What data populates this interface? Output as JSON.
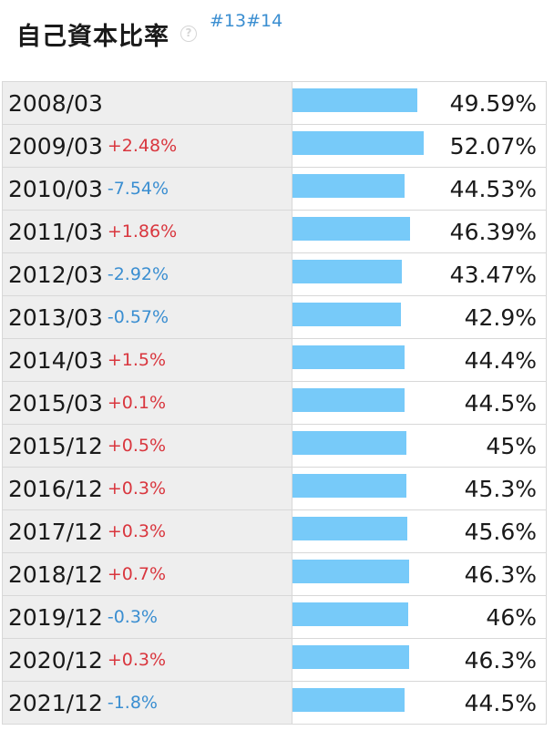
{
  "header": {
    "title": "自己資本比率",
    "help_icon": "question-circle-icon",
    "links": [
      "#13",
      "#14"
    ]
  },
  "colors": {
    "bar": "#77caf9",
    "increase": "#d9363e",
    "decrease": "#3a8ed1",
    "label_bg": "#eeeeee"
  },
  "chart_data": {
    "type": "bar",
    "orientation": "horizontal",
    "title": "自己資本比率",
    "unit": "%",
    "xlim": [
      0,
      100
    ],
    "categories": [
      "2008/03",
      "2009/03",
      "2010/03",
      "2011/03",
      "2012/03",
      "2013/03",
      "2014/03",
      "2015/03",
      "2015/12",
      "2016/12",
      "2017/12",
      "2018/12",
      "2019/12",
      "2020/12",
      "2021/12"
    ],
    "values": [
      49.59,
      52.07,
      44.53,
      46.39,
      43.47,
      42.9,
      44.4,
      44.5,
      45,
      45.3,
      45.6,
      46.3,
      46,
      46.3,
      44.5
    ],
    "value_labels": [
      "49.59%",
      "52.07%",
      "44.53%",
      "46.39%",
      "43.47%",
      "42.9%",
      "44.4%",
      "44.5%",
      "45%",
      "45.3%",
      "45.6%",
      "46.3%",
      "46%",
      "46.3%",
      "44.5%"
    ],
    "change_labels": [
      "",
      "+2.48%",
      "-7.54%",
      "+1.86%",
      "-2.92%",
      "-0.57%",
      "+1.5%",
      "+0.1%",
      "+0.5%",
      "+0.3%",
      "+0.3%",
      "+0.7%",
      "-0.3%",
      "+0.3%",
      "-1.8%"
    ],
    "change_direction": [
      "",
      "up",
      "down",
      "up",
      "down",
      "down",
      "up",
      "up",
      "up",
      "up",
      "up",
      "up",
      "down",
      "up",
      "down"
    ]
  }
}
